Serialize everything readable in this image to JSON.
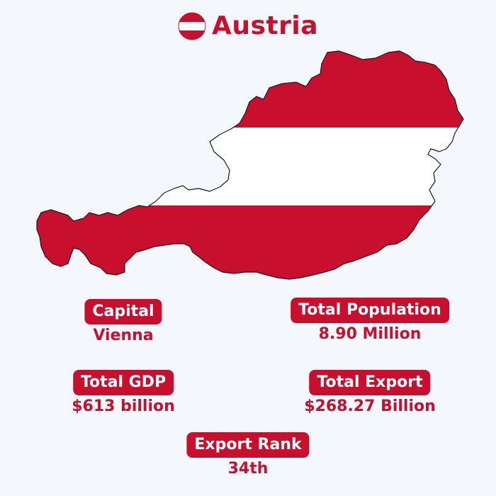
{
  "title": "Austria",
  "colors": {
    "red": "#c8102e",
    "white": "#ffffff",
    "background": "#f4f7fb"
  },
  "icons": {
    "flag": "austria-flag-icon",
    "map": "austria-map"
  },
  "stats": {
    "capital": {
      "label": "Capital",
      "value": "Vienna"
    },
    "population": {
      "label": "Total Population",
      "value": "8.90 Million"
    },
    "gdp": {
      "label": "Total GDP",
      "value": "$613 billion"
    },
    "export": {
      "label": "Total Export",
      "value": "$268.27 Billion"
    },
    "export_rank": {
      "label": "Export Rank",
      "value": "34th"
    }
  }
}
